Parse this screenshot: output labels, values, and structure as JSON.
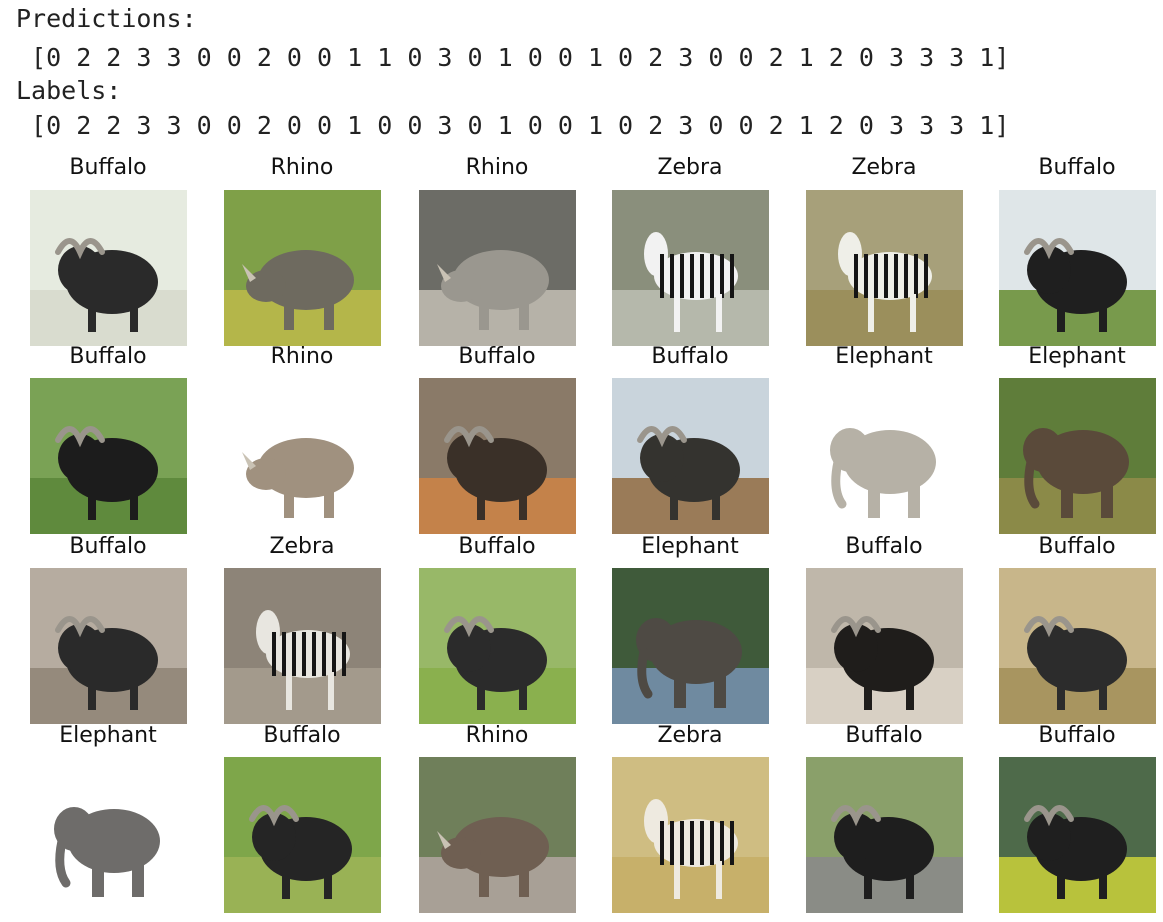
{
  "output": {
    "predictions_header": "Predictions:",
    "predictions_values": " [0 2 2 3 3 0 0 2 0 0 1 1 0 3 0 1 0 0 1 0 2 3 0 0 2 1 2 0 3 3 3 1]",
    "labels_header": "Labels:",
    "labels_values": " [0 2 2 3 3 0 0 2 0 0 1 0 0 3 0 1 0 0 1 0 2 3 0 0 2 1 2 0 3 3 3 1]"
  },
  "grid": {
    "rows": [
      [
        {
          "title": "Buffalo",
          "animal": "buffalo",
          "bg": "#e6ebe0",
          "ground": "#d9dccf",
          "body": "#2a2a2a"
        },
        {
          "title": "Rhino",
          "animal": "rhino",
          "bg": "#7fa048",
          "ground": "#b4b64a",
          "body": "#6e6a5f"
        },
        {
          "title": "Rhino",
          "animal": "rhino",
          "bg": "#6c6c66",
          "ground": "#b6b2a8",
          "body": "#9a978f"
        },
        {
          "title": "Zebra",
          "animal": "zebra",
          "bg": "#8a8f7c",
          "ground": "#b5b8ab",
          "body": "#f2f2f2"
        },
        {
          "title": "Zebra",
          "animal": "zebra",
          "bg": "#a7a07a",
          "ground": "#9b8f5c",
          "body": "#efefe8"
        },
        {
          "title": "Buffalo",
          "animal": "buffalo",
          "bg": "#dfe6e8",
          "ground": "#789a4c",
          "body": "#1f1f1f"
        }
      ],
      [
        {
          "title": "Buffalo",
          "animal": "buffalo",
          "bg": "#7aa255",
          "ground": "#5f8a3d",
          "body": "#1c1c1c"
        },
        {
          "title": "Rhino",
          "animal": "rhino",
          "bg": "#ffffff",
          "ground": "#ffffff",
          "body": "#a0917f"
        },
        {
          "title": "Buffalo",
          "animal": "buffalo",
          "bg": "#8a7a68",
          "ground": "#c4824a",
          "body": "#3a3028"
        },
        {
          "title": "Buffalo",
          "animal": "buffalo",
          "bg": "#c9d4dc",
          "ground": "#9a7b58",
          "body": "#34332f"
        },
        {
          "title": "Elephant",
          "animal": "elephant",
          "bg": "#ffffff",
          "ground": "#ffffff",
          "body": "#b6b1a6"
        },
        {
          "title": "Elephant",
          "animal": "elephant",
          "bg": "#5f7d3a",
          "ground": "#8b8a48",
          "body": "#5a4a3a"
        }
      ],
      [
        {
          "title": "Buffalo",
          "animal": "buffalo",
          "bg": "#b6aca0",
          "ground": "#958a7c",
          "body": "#2a2a2a"
        },
        {
          "title": "Zebra",
          "animal": "zebra",
          "bg": "#8d8478",
          "ground": "#a39a8c",
          "body": "#e8e6e0"
        },
        {
          "title": "Buffalo",
          "animal": "buffalo",
          "bg": "#98b868",
          "ground": "#8ab04e",
          "body": "#2b2b2b"
        },
        {
          "title": "Elephant",
          "animal": "elephant",
          "bg": "#3f5a3a",
          "ground": "#6f8aa0",
          "body": "#4e4a44"
        },
        {
          "title": "Buffalo",
          "animal": "buffalo",
          "bg": "#bfb7aa",
          "ground": "#d8d0c4",
          "body": "#1f1d1b"
        },
        {
          "title": "Buffalo",
          "animal": "buffalo",
          "bg": "#c8b68a",
          "ground": "#a89560",
          "body": "#2c2c2c"
        }
      ],
      [
        {
          "title": "Elephant",
          "animal": "elephant",
          "bg": "#ffffff",
          "ground": "#ffffff",
          "body": "#6e6c6a"
        },
        {
          "title": "Buffalo",
          "animal": "buffalo",
          "bg": "#7ea64a",
          "ground": "#99b255",
          "body": "#252525"
        },
        {
          "title": "Rhino",
          "animal": "rhino",
          "bg": "#6f7f5a",
          "ground": "#a8a096",
          "body": "#6f5f52"
        },
        {
          "title": "Zebra",
          "animal": "zebra",
          "bg": "#cfbd82",
          "ground": "#c7b06a",
          "body": "#eeeae0"
        },
        {
          "title": "Buffalo",
          "animal": "buffalo",
          "bg": "#8aa06a",
          "ground": "#8a8c86",
          "body": "#1e1e1e"
        },
        {
          "title": "Buffalo",
          "animal": "buffalo",
          "bg": "#4e6a4a",
          "ground": "#b8c23c",
          "body": "#1f1f1f"
        }
      ]
    ]
  }
}
